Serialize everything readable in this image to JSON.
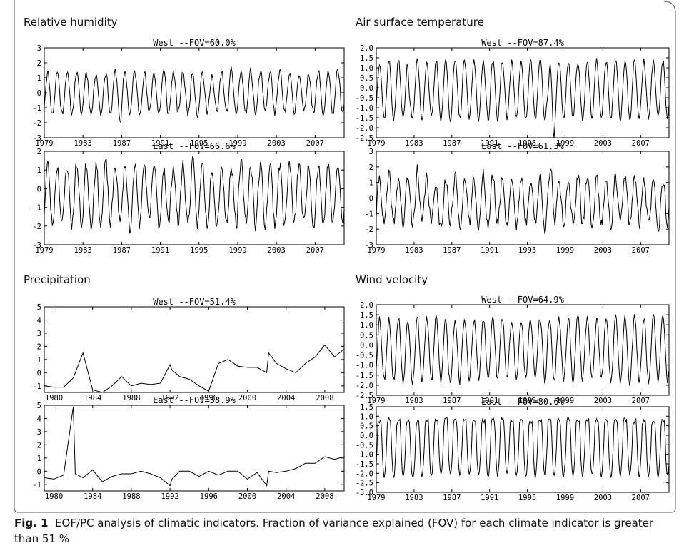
{
  "caption": {
    "label": "Fig. 1",
    "text": "EOF/PC analysis of climatic indicators. Fraction of variance explained (FOV) for each climate indicator is greater than 51 %"
  },
  "chart_data": [
    {
      "type": "line",
      "group": "Relative humidity",
      "title": "West --FOV=60.0%",
      "x_tick_labels": [
        "1979",
        "1983",
        "1987",
        "1991",
        "1995",
        "1999",
        "2003",
        "2007"
      ],
      "y_tick_labels": [
        "3",
        "2",
        "1",
        "0",
        "-1",
        "-2",
        "-3"
      ],
      "xlim": [
        1979,
        2010
      ],
      "ylim": [
        -3,
        3
      ],
      "series": [
        {
          "monthly": true,
          "amplitude": 1.4,
          "offset": 0.0,
          "noise": 0.25,
          "seed": 11,
          "events": [
            [
              1986.9,
              -0.8
            ],
            [
              1996.5,
              -0.4
            ]
          ]
        }
      ]
    },
    {
      "type": "line",
      "group": "Relative humidity",
      "title": "East --FOV=66.6%",
      "x_tick_labels": [
        "1979",
        "1983",
        "1987",
        "1991",
        "1995",
        "1999",
        "2003",
        "2007"
      ],
      "y_tick_labels": [
        "2",
        "1",
        "0",
        "-1",
        "-2",
        "-3"
      ],
      "xlim": [
        1979,
        2010
      ],
      "ylim": [
        -3,
        2
      ],
      "series": [
        {
          "monthly": true,
          "amplitude": 1.6,
          "offset": -0.3,
          "noise": 0.35,
          "seed": 23,
          "events": [
            [
              1987.9,
              -0.6
            ],
            [
              1991.1,
              -0.5
            ]
          ]
        }
      ]
    },
    {
      "type": "line",
      "group": "Air surface temperature",
      "title": "West --FOV=87.4%",
      "x_tick_labels": [
        "1979",
        "1983",
        "1987",
        "1991",
        "1995",
        "1999",
        "2003",
        "2007"
      ],
      "y_tick_labels": [
        "2.0",
        "1.5",
        "1.0",
        "0.5",
        "0.0",
        "-0.5",
        "-1.0",
        "-1.5",
        "-2.0",
        "-2.5"
      ],
      "xlim": [
        1979,
        2010
      ],
      "ylim": [
        -2.5,
        2.0
      ],
      "series": [
        {
          "monthly": true,
          "amplitude": 1.45,
          "offset": -0.1,
          "noise": 0.15,
          "seed": 37,
          "events": [
            [
              1982.5,
              -1.0
            ],
            [
              1997.2,
              -1.1
            ],
            [
              1997.8,
              -1.0
            ]
          ]
        }
      ]
    },
    {
      "type": "line",
      "group": "Air surface temperature",
      "title": "East --FOV=61.3%",
      "x_tick_labels": [
        "1979",
        "1983",
        "1987",
        "1991",
        "1995",
        "1999",
        "2003",
        "2007"
      ],
      "y_tick_labels": [
        "3",
        "2",
        "1",
        "0",
        "-1",
        "-2",
        "-3"
      ],
      "xlim": [
        1979,
        2010
      ],
      "ylim": [
        -3,
        3
      ],
      "series": [
        {
          "monthly": true,
          "amplitude": 1.5,
          "offset": -0.2,
          "noise": 0.45,
          "seed": 41,
          "events": [
            [
              1983.3,
              0.6
            ],
            [
              1985.6,
              -0.8
            ],
            [
              1997.6,
              1.2
            ]
          ]
        }
      ]
    },
    {
      "type": "line",
      "group": "Precipitation",
      "title": "West --FOV=51.4%",
      "x_tick_labels": [
        "1980",
        "1984",
        "1988",
        "1992",
        "1996",
        "2000",
        "2004",
        "2008"
      ],
      "y_tick_labels": [
        "5",
        "4",
        "3",
        "2",
        "1",
        "0",
        "-1"
      ],
      "xlim": [
        1979,
        2010
      ],
      "ylim": [
        -1.5,
        5
      ],
      "series": [
        {
          "x": [
            1979,
            1980,
            1981,
            1982,
            1983,
            1984,
            1985,
            1986,
            1987,
            1988,
            1989,
            1990,
            1991,
            1992,
            1992.2,
            1993,
            1994,
            1995,
            1996,
            1997,
            1998,
            1999,
            2000,
            2001,
            2002,
            2002.2,
            2003,
            2004,
            2005,
            2006,
            2007,
            2008,
            2009,
            2010
          ],
          "y": [
            -1.0,
            -1.1,
            -1.1,
            -0.4,
            1.5,
            -1.3,
            -1.5,
            -1.0,
            -0.3,
            -1.0,
            -0.8,
            -0.9,
            -0.8,
            0.6,
            0.2,
            -0.3,
            -0.5,
            -1.0,
            -1.4,
            0.7,
            1.0,
            0.5,
            0.4,
            0.4,
            0.0,
            1.5,
            0.7,
            0.3,
            0.0,
            0.7,
            1.2,
            2.1,
            1.2,
            1.8
          ]
        }
      ]
    },
    {
      "type": "line",
      "group": "Precipitation",
      "title": "East --FOV=58.9%",
      "x_tick_labels": [
        "1980",
        "1984",
        "1988",
        "1992",
        "1996",
        "2000",
        "2004",
        "2008"
      ],
      "y_tick_labels": [
        "5",
        "4",
        "3",
        "2",
        "1",
        "0",
        "-1"
      ],
      "xlim": [
        1979,
        2010
      ],
      "ylim": [
        -1.5,
        5
      ],
      "series": [
        {
          "x": [
            1979,
            1980,
            1981,
            1982,
            1982.2,
            1983,
            1984,
            1985,
            1986,
            1987,
            1988,
            1989,
            1990,
            1991,
            1992,
            1992.2,
            1993,
            1994,
            1995,
            1996,
            1997,
            1998,
            1999,
            2000,
            2001,
            2002,
            2002.2,
            2003,
            2004,
            2005,
            2006,
            2007,
            2008,
            2009,
            2010
          ],
          "y": [
            -0.5,
            -0.6,
            -0.3,
            4.9,
            -0.2,
            -0.5,
            0.1,
            -0.8,
            -0.4,
            -0.2,
            -0.2,
            0.0,
            -0.2,
            -0.5,
            -1.1,
            -0.6,
            0.0,
            0.0,
            -0.4,
            0.0,
            -0.3,
            0.0,
            0.0,
            -0.6,
            -0.1,
            -1.1,
            0.0,
            -0.1,
            0.0,
            0.2,
            0.6,
            0.6,
            1.1,
            0.9,
            1.1
          ]
        }
      ]
    },
    {
      "type": "line",
      "group": "Wind velocity",
      "title": "West --FOV=64.9%",
      "x_tick_labels": [
        "1979",
        "1983",
        "1987",
        "1991",
        "1995",
        "1999",
        "2003",
        "2007"
      ],
      "y_tick_labels": [
        "2.0",
        "1.5",
        "1.0",
        "0.5",
        "0.0",
        "-0.5",
        "-1.0",
        "-1.5",
        "-2.0",
        "-2.5"
      ],
      "xlim": [
        1979,
        2010
      ],
      "ylim": [
        -2.5,
        2.0
      ],
      "series": [
        {
          "monthly": true,
          "amplitude": 1.55,
          "offset": -0.2,
          "noise": 0.2,
          "seed": 53,
          "events": [
            [
              1986.6,
              -0.5
            ],
            [
              2001.1,
              0.4
            ]
          ]
        }
      ]
    },
    {
      "type": "line",
      "group": "Wind velocity",
      "title": "East --FOV=80.6%",
      "x_tick_labels": [
        "1979",
        "1983",
        "1987",
        "1991",
        "1995",
        "1999",
        "2003",
        "2007"
      ],
      "y_tick_labels": [
        "1.5",
        "1.0",
        "0.5",
        "0.0",
        "-0.5",
        "-1.0",
        "-1.5",
        "-2.0",
        "-2.5",
        "-3.0"
      ],
      "xlim": [
        1979,
        2010
      ],
      "ylim": [
        -3.0,
        1.5
      ],
      "series": [
        {
          "monthly": true,
          "amplitude": 1.55,
          "offset": -0.45,
          "noise": 0.12,
          "seed": 67,
          "shape": "flat-top",
          "events": [
            [
              1983.1,
              -0.6
            ],
            [
              1998.6,
              -0.5
            ]
          ]
        }
      ]
    }
  ],
  "panel_groups": [
    {
      "title": "Relative humidity"
    },
    {
      "title": "Air surface temperature"
    },
    {
      "title": "Precipitation"
    },
    {
      "title": "Wind velocity"
    }
  ]
}
